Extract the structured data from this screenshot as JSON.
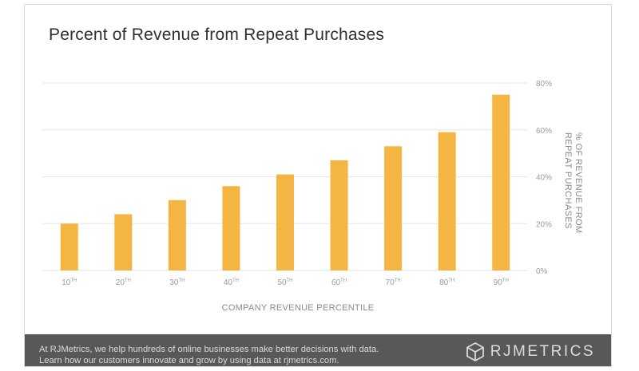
{
  "chart_data": {
    "type": "bar",
    "title": "Percent of Revenue from Repeat Purchases",
    "categories": [
      "10",
      "20",
      "30",
      "40",
      "50",
      "60",
      "70",
      "80",
      "90"
    ],
    "category_suffix": "TH",
    "values": [
      20,
      24,
      30,
      36,
      41,
      47,
      53,
      59,
      75
    ],
    "xlabel": "COMPANY REVENUE PERCENTILE",
    "ylabel_lines": [
      "% OF REVENUE FROM",
      "REPEAT PURCHASES"
    ],
    "yticks": [
      "0%",
      "20%",
      "40%",
      "60%",
      "80%"
    ],
    "ytick_values": [
      0,
      20,
      40,
      60,
      80
    ],
    "ylim": [
      0,
      80
    ],
    "grid": true,
    "axis_position": "right",
    "colors": {
      "bar": "#f4b543",
      "grid": "#e6e6e6",
      "axis_text": "#9a9a9a"
    }
  },
  "footer": {
    "line1": "At RJMetrics, we help hundreds of online businesses make better decisions with data.",
    "line2": "Learn how our customers innovate and grow by using data at rjmetrics.com.",
    "brand_part1": "RJ",
    "brand_part2": "METRICS",
    "logo_icon": "hexagon-cube-icon",
    "background": "#58585a"
  }
}
